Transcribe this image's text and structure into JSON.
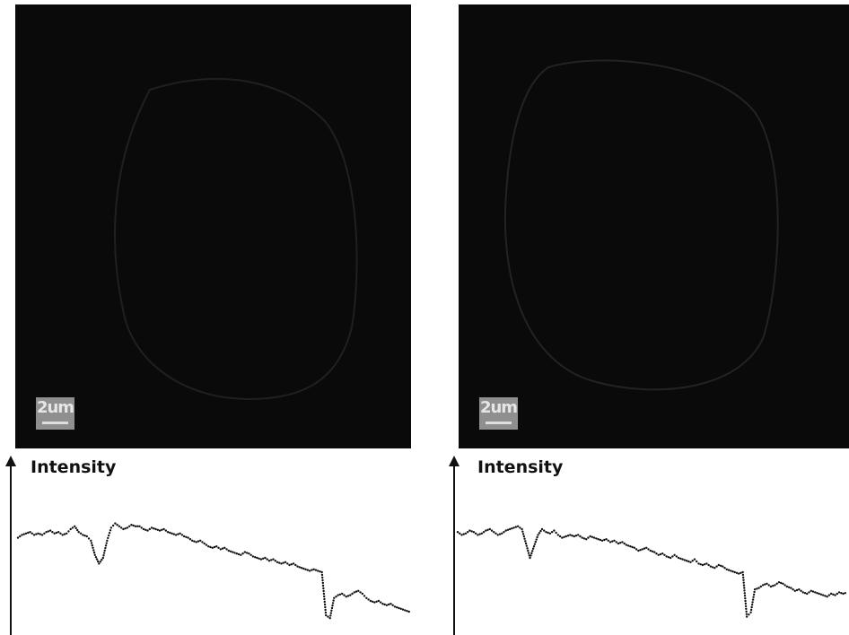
{
  "panels": [
    {
      "id": "left",
      "scale_bar_label": "2um",
      "profile_label": "Intensity",
      "profile_y": [
        64,
        66,
        67,
        68,
        66,
        67,
        66,
        68,
        69,
        67,
        68,
        66,
        67,
        70,
        72,
        68,
        66,
        65,
        62,
        52,
        46,
        50,
        62,
        71,
        74,
        72,
        70,
        71,
        73,
        72,
        72,
        70,
        69,
        71,
        70,
        69,
        70,
        68,
        67,
        66,
        67,
        65,
        64,
        62,
        61,
        62,
        60,
        58,
        57,
        58,
        56,
        57,
        55,
        54,
        53,
        52,
        54,
        53,
        51,
        50,
        49,
        50,
        48,
        49,
        47,
        46,
        47,
        45,
        46,
        44,
        43,
        42,
        41,
        42,
        41,
        40,
        10,
        8,
        22,
        24,
        25,
        23,
        24,
        26,
        27,
        25,
        22,
        20,
        19,
        20,
        18,
        17,
        18,
        16,
        15,
        14,
        13,
        12
      ]
    },
    {
      "id": "right",
      "scale_bar_label": "2um",
      "profile_label": "Intensity",
      "profile_y": [
        68,
        66,
        67,
        69,
        68,
        66,
        67,
        69,
        70,
        68,
        66,
        67,
        69,
        70,
        71,
        72,
        70,
        60,
        50,
        58,
        66,
        70,
        68,
        67,
        69,
        66,
        64,
        65,
        66,
        65,
        66,
        64,
        63,
        65,
        64,
        63,
        62,
        63,
        61,
        62,
        60,
        61,
        59,
        58,
        57,
        55,
        56,
        57,
        55,
        54,
        52,
        53,
        51,
        50,
        52,
        50,
        49,
        48,
        47,
        49,
        46,
        45,
        46,
        44,
        43,
        45,
        44,
        42,
        41,
        40,
        39,
        40,
        9,
        12,
        28,
        29,
        31,
        32,
        30,
        31,
        33,
        32,
        30,
        29,
        27,
        28,
        26,
        25,
        27,
        26,
        25,
        24,
        23,
        25,
        24,
        26,
        25,
        26
      ]
    }
  ]
}
